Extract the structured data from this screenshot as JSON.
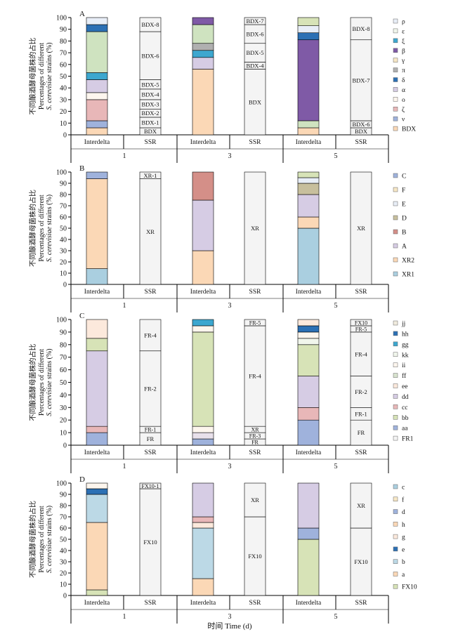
{
  "figure": {
    "x_title": "时间 Time (d)",
    "y_title_cn": "不同酿酒酵母菌株的占比",
    "y_title_en1": "Percentages of different",
    "y_title_en2_italic": "S. cerevisiae",
    "y_title_en2_rest": " strains (%)",
    "colors": {
      "c1": "#9fb2dc",
      "c2": "#e8b7b8",
      "c3": "#fbd8b6",
      "c4": "#d6cce4",
      "c5": "#fce9dc",
      "c6": "#cfe3c0",
      "c7": "#7f5aa6",
      "c8": "#2c70b4",
      "c9": "#3da7cf",
      "c10": "#aacfe0",
      "c11": "#f4f4f4",
      "c12": "#b0b0b0",
      "c13": "#fdf6ee",
      "c14": "#f1f6ec",
      "c15": "#ae8b94",
      "c16": "#e8eef7",
      "c17": "#f7e7c5",
      "c18": "#a4c4e0",
      "c19": "#d7e3b7",
      "c20": "#d48f88",
      "c21": "#f0ebde",
      "c22": "#c7bf9d",
      "c23": "#d8e3ce"
    }
  },
  "chart_data": [
    {
      "type": "bar",
      "panel": "A",
      "groups": [
        "1",
        "3",
        "5"
      ],
      "categories": [
        "Interdelta",
        "SSR",
        "Interdelta",
        "SSR",
        "Interdelta",
        "SSR"
      ],
      "ylim": [
        0,
        100
      ],
      "yticks": [
        "0",
        "10",
        "20",
        "30",
        "40",
        "50",
        "60",
        "70",
        "80",
        "90",
        "100"
      ],
      "legend": [
        "ρ",
        "ε",
        "ξ",
        "β",
        "γ",
        "π",
        "δ",
        "α",
        "ο",
        "ζ",
        "ν",
        "BDX"
      ],
      "legend_colors": [
        "#e8eef7",
        "#f1f6ec",
        "#3da7cf",
        "#7f5aa6",
        "#f7e7c5",
        "#b0b0b0",
        "#2c70b4",
        "#d6cce4",
        "#fdf6ee",
        "#e8b7b8",
        "#9fb2dc",
        "#fbd8b6"
      ],
      "bars": [
        {
          "segments": [
            {
              "value": 6,
              "color": "#fbd8b6"
            },
            {
              "value": 6,
              "color": "#9fb2dc"
            },
            {
              "value": 18,
              "color": "#e8b7b8"
            },
            {
              "value": 6,
              "color": "#fdf6ee"
            },
            {
              "value": 11,
              "color": "#d6cce4"
            },
            {
              "value": 6,
              "color": "#3da7cf"
            },
            {
              "value": 35,
              "color": "#cfe3c0"
            },
            {
              "value": 6,
              "color": "#2c70b4"
            },
            {
              "value": 6,
              "color": "#e8eef7"
            }
          ]
        },
        {
          "segments": [
            {
              "value": 6,
              "color": "#f4f4f4",
              "label": "BDX"
            },
            {
              "value": 9,
              "color": "#f4f4f4",
              "label": "BDX-1"
            },
            {
              "value": 7,
              "color": "#f4f4f4",
              "label": "BDX-2"
            },
            {
              "value": 8,
              "color": "#f4f4f4",
              "label": "BDX-3"
            },
            {
              "value": 9,
              "color": "#f4f4f4",
              "label": "BDX-4"
            },
            {
              "value": 8,
              "color": "#f4f4f4",
              "label": "BDX-5"
            },
            {
              "value": 41,
              "color": "#f4f4f4",
              "label": "BDX-6"
            },
            {
              "value": 12,
              "color": "#f4f4f4",
              "label": "BDX-8"
            }
          ]
        },
        {
          "segments": [
            {
              "value": 56,
              "color": "#fbd8b6"
            },
            {
              "value": 10,
              "color": "#d6cce4"
            },
            {
              "value": 6,
              "color": "#3da7cf"
            },
            {
              "value": 6,
              "color": "#b0b0b0"
            },
            {
              "value": 16,
              "color": "#cfe3c0"
            },
            {
              "value": 6,
              "color": "#7f5aa6"
            }
          ]
        },
        {
          "segments": [
            {
              "value": 56,
              "color": "#f4f4f4",
              "label": "BDX"
            },
            {
              "value": 6,
              "color": "#f4f4f4",
              "label": "BDX-4"
            },
            {
              "value": 16,
              "color": "#f4f4f4",
              "label": "BDX-5"
            },
            {
              "value": 16,
              "color": "#f4f4f4",
              "label": "BDX-6"
            },
            {
              "value": 6,
              "color": "#f4f4f4",
              "label": "BDX-7"
            }
          ]
        },
        {
          "segments": [
            {
              "value": 6,
              "color": "#fbd8b6"
            },
            {
              "value": 6,
              "color": "#cfe3c0"
            },
            {
              "value": 69,
              "color": "#7f5aa6"
            },
            {
              "value": 6,
              "color": "#2c70b4"
            },
            {
              "value": 6,
              "color": "#e8eef7"
            },
            {
              "value": 7,
              "color": "#d7e3b7"
            }
          ]
        },
        {
          "segments": [
            {
              "value": 6,
              "color": "#f4f4f4",
              "label": "BDX"
            },
            {
              "value": 6,
              "color": "#f4f4f4",
              "label": "BDX-6"
            },
            {
              "value": 69,
              "color": "#f4f4f4",
              "label": "BDX-7"
            },
            {
              "value": 19,
              "color": "#f4f4f4",
              "label": "BDX-8"
            }
          ]
        }
      ]
    },
    {
      "type": "bar",
      "panel": "B",
      "groups": [
        "1",
        "3",
        "5"
      ],
      "categories": [
        "Interdelta",
        "SSR",
        "Interdelta",
        "SSR",
        "Interdelta",
        "SSR"
      ],
      "ylim": [
        0,
        100
      ],
      "yticks": [
        "0",
        "10",
        "20",
        "30",
        "40",
        "50",
        "60",
        "70",
        "80",
        "90",
        "100"
      ],
      "legend": [
        "C",
        "F",
        "E",
        "D",
        "B",
        "A",
        "XR2",
        "XR1"
      ],
      "legend_colors": [
        "#9fb2dc",
        "#f7e7c5",
        "#e8eef7",
        "#c7bf9d",
        "#d48f88",
        "#d6cce4",
        "#fbd8b6",
        "#aacfe0"
      ],
      "bars": [
        {
          "segments": [
            {
              "value": 14,
              "color": "#aacfe0"
            },
            {
              "value": 80,
              "color": "#fbd8b6"
            },
            {
              "value": 6,
              "color": "#9fb2dc"
            }
          ]
        },
        {
          "segments": [
            {
              "value": 94,
              "color": "#f4f4f4",
              "label": "XR"
            },
            {
              "value": 6,
              "color": "#f4f4f4",
              "label": "XR-1"
            }
          ]
        },
        {
          "segments": [
            {
              "value": 30,
              "color": "#fbd8b6"
            },
            {
              "value": 45,
              "color": "#d6cce4"
            },
            {
              "value": 25,
              "color": "#d48f88"
            }
          ]
        },
        {
          "segments": [
            {
              "value": 100,
              "color": "#f4f4f4",
              "label": "XR"
            }
          ]
        },
        {
          "segments": [
            {
              "value": 50,
              "color": "#aacfe0"
            },
            {
              "value": 10,
              "color": "#fbd8b6"
            },
            {
              "value": 20,
              "color": "#d6cce4"
            },
            {
              "value": 10,
              "color": "#c7bf9d"
            },
            {
              "value": 5,
              "color": "#e8eef7"
            },
            {
              "value": 5,
              "color": "#d7e3b7"
            }
          ]
        },
        {
          "segments": [
            {
              "value": 100,
              "color": "#f4f4f4",
              "label": "XR"
            }
          ]
        }
      ]
    },
    {
      "type": "bar",
      "panel": "C",
      "groups": [
        "1",
        "3",
        "5"
      ],
      "categories": [
        "Interdelta",
        "SSR",
        "Interdelta",
        "SSR",
        "Interdelta",
        "SSR"
      ],
      "ylim": [
        0,
        100
      ],
      "yticks": [
        "0",
        "10",
        "20",
        "30",
        "40",
        "50",
        "60",
        "70",
        "80",
        "90",
        "100"
      ],
      "legend": [
        "jj",
        "hh",
        "gg",
        "kk",
        "ii",
        "ff",
        "ee",
        "dd",
        "cc",
        "bb",
        "aa",
        "FR1"
      ],
      "legend_colors": [
        "#f0ebde",
        "#2c70b4",
        "#3da7cf",
        "#f1f6ec",
        "#fdf6ee",
        "#d8e3ce",
        "#fce9dc",
        "#d6cce4",
        "#e8b7b8",
        "#d7e3b7",
        "#9fb2dc",
        "#f4f4f4"
      ],
      "bars": [
        {
          "segments": [
            {
              "value": 10,
              "color": "#9fb2dc"
            },
            {
              "value": 5,
              "color": "#e8b7b8"
            },
            {
              "value": 60,
              "color": "#d6cce4"
            },
            {
              "value": 10,
              "color": "#d7e3b7"
            },
            {
              "value": 15,
              "color": "#fce9dc"
            }
          ]
        },
        {
          "segments": [
            {
              "value": 10,
              "color": "#f4f4f4",
              "label": "FR"
            },
            {
              "value": 5,
              "color": "#f4f4f4",
              "label": "FR-1"
            },
            {
              "value": 60,
              "color": "#f4f4f4",
              "label": "FR-2"
            },
            {
              "value": 25,
              "color": "#f4f4f4",
              "label": "FR-4"
            }
          ]
        },
        {
          "segments": [
            {
              "value": 5,
              "color": "#9fb2dc"
            },
            {
              "value": 5,
              "color": "#e8e0ea"
            },
            {
              "value": 5,
              "color": "#fdf6ee"
            },
            {
              "value": 75,
              "color": "#d7e3b7"
            },
            {
              "value": 5,
              "color": "#fdf6ee"
            },
            {
              "value": 5,
              "color": "#3da7cf"
            }
          ]
        },
        {
          "segments": [
            {
              "value": 5,
              "color": "#f4f4f4",
              "label": "FR"
            },
            {
              "value": 5,
              "color": "#f4f4f4",
              "label": "FR-3"
            },
            {
              "value": 5,
              "color": "#f4f4f4",
              "label": "XR"
            },
            {
              "value": 80,
              "color": "#f4f4f4",
              "label": "FR-4"
            },
            {
              "value": 5,
              "color": "#f4f4f4",
              "label": "FR-5"
            }
          ]
        },
        {
          "segments": [
            {
              "value": 20,
              "color": "#9fb2dc"
            },
            {
              "value": 10,
              "color": "#e8b7b8"
            },
            {
              "value": 25,
              "color": "#d6cce4"
            },
            {
              "value": 25,
              "color": "#d7e3b7"
            },
            {
              "value": 5,
              "color": "#f1f6ec"
            },
            {
              "value": 5,
              "color": "#fdf6ee"
            },
            {
              "value": 5,
              "color": "#2c70b4"
            },
            {
              "value": 5,
              "color": "#fce9dc"
            }
          ]
        },
        {
          "segments": [
            {
              "value": 20,
              "color": "#f4f4f4",
              "label": "FR"
            },
            {
              "value": 10,
              "color": "#f4f4f4",
              "label": "FR-1"
            },
            {
              "value": 25,
              "color": "#f4f4f4",
              "label": "FR-2"
            },
            {
              "value": 35,
              "color": "#f4f4f4",
              "label": "FR-4"
            },
            {
              "value": 5,
              "color": "#f4f4f4",
              "label": "FR-5"
            },
            {
              "value": 5,
              "color": "#f4f4f4",
              "label": "FX10"
            }
          ]
        }
      ]
    },
    {
      "type": "bar",
      "panel": "D",
      "groups": [
        "1",
        "3",
        "5"
      ],
      "categories": [
        "Interdelta",
        "SSR",
        "Interdelta",
        "SSR",
        "Interdelta",
        "SSR"
      ],
      "ylim": [
        0,
        100
      ],
      "yticks": [
        "0",
        "10",
        "20",
        "30",
        "40",
        "50",
        "60",
        "70",
        "80",
        "90",
        "100"
      ],
      "legend": [
        "c",
        "f",
        "d",
        "h",
        "g",
        "e",
        "b",
        "a",
        "FX10"
      ],
      "legend_colors": [
        "#aacfe0",
        "#f7e7c5",
        "#9fb2dc",
        "#fbd8b6",
        "#fce9dc",
        "#2c70b4",
        "#bcd9e6",
        "#fbd8b6",
        "#d7e3b7"
      ],
      "bars": [
        {
          "segments": [
            {
              "value": 5,
              "color": "#d7e3b7"
            },
            {
              "value": 60,
              "color": "#fbd8b6"
            },
            {
              "value": 25,
              "color": "#bcd9e6"
            },
            {
              "value": 5,
              "color": "#2c70b4"
            },
            {
              "value": 5,
              "color": "#fdf6ee"
            }
          ]
        },
        {
          "segments": [
            {
              "value": 95,
              "color": "#f4f4f4",
              "label": "FX10"
            },
            {
              "value": 5,
              "color": "#f4f4f4",
              "label": "FX10-1"
            }
          ]
        },
        {
          "segments": [
            {
              "value": 15,
              "color": "#fbd8b6"
            },
            {
              "value": 45,
              "color": "#bcd9e6"
            },
            {
              "value": 5,
              "color": "#fce9dc"
            },
            {
              "value": 5,
              "color": "#e8b7b8"
            },
            {
              "value": 30,
              "color": "#d6cce4"
            }
          ]
        },
        {
          "segments": [
            {
              "value": 70,
              "color": "#f4f4f4",
              "label": "FX10"
            },
            {
              "value": 30,
              "color": "#f4f4f4",
              "label": "XR"
            }
          ]
        },
        {
          "segments": [
            {
              "value": 50,
              "color": "#d7e3b7"
            },
            {
              "value": 10,
              "color": "#9fb2dc"
            },
            {
              "value": 40,
              "color": "#d6cce4"
            }
          ]
        },
        {
          "segments": [
            {
              "value": 60,
              "color": "#f4f4f4",
              "label": "FX10"
            },
            {
              "value": 40,
              "color": "#f4f4f4",
              "label": "XR"
            }
          ]
        }
      ]
    }
  ]
}
